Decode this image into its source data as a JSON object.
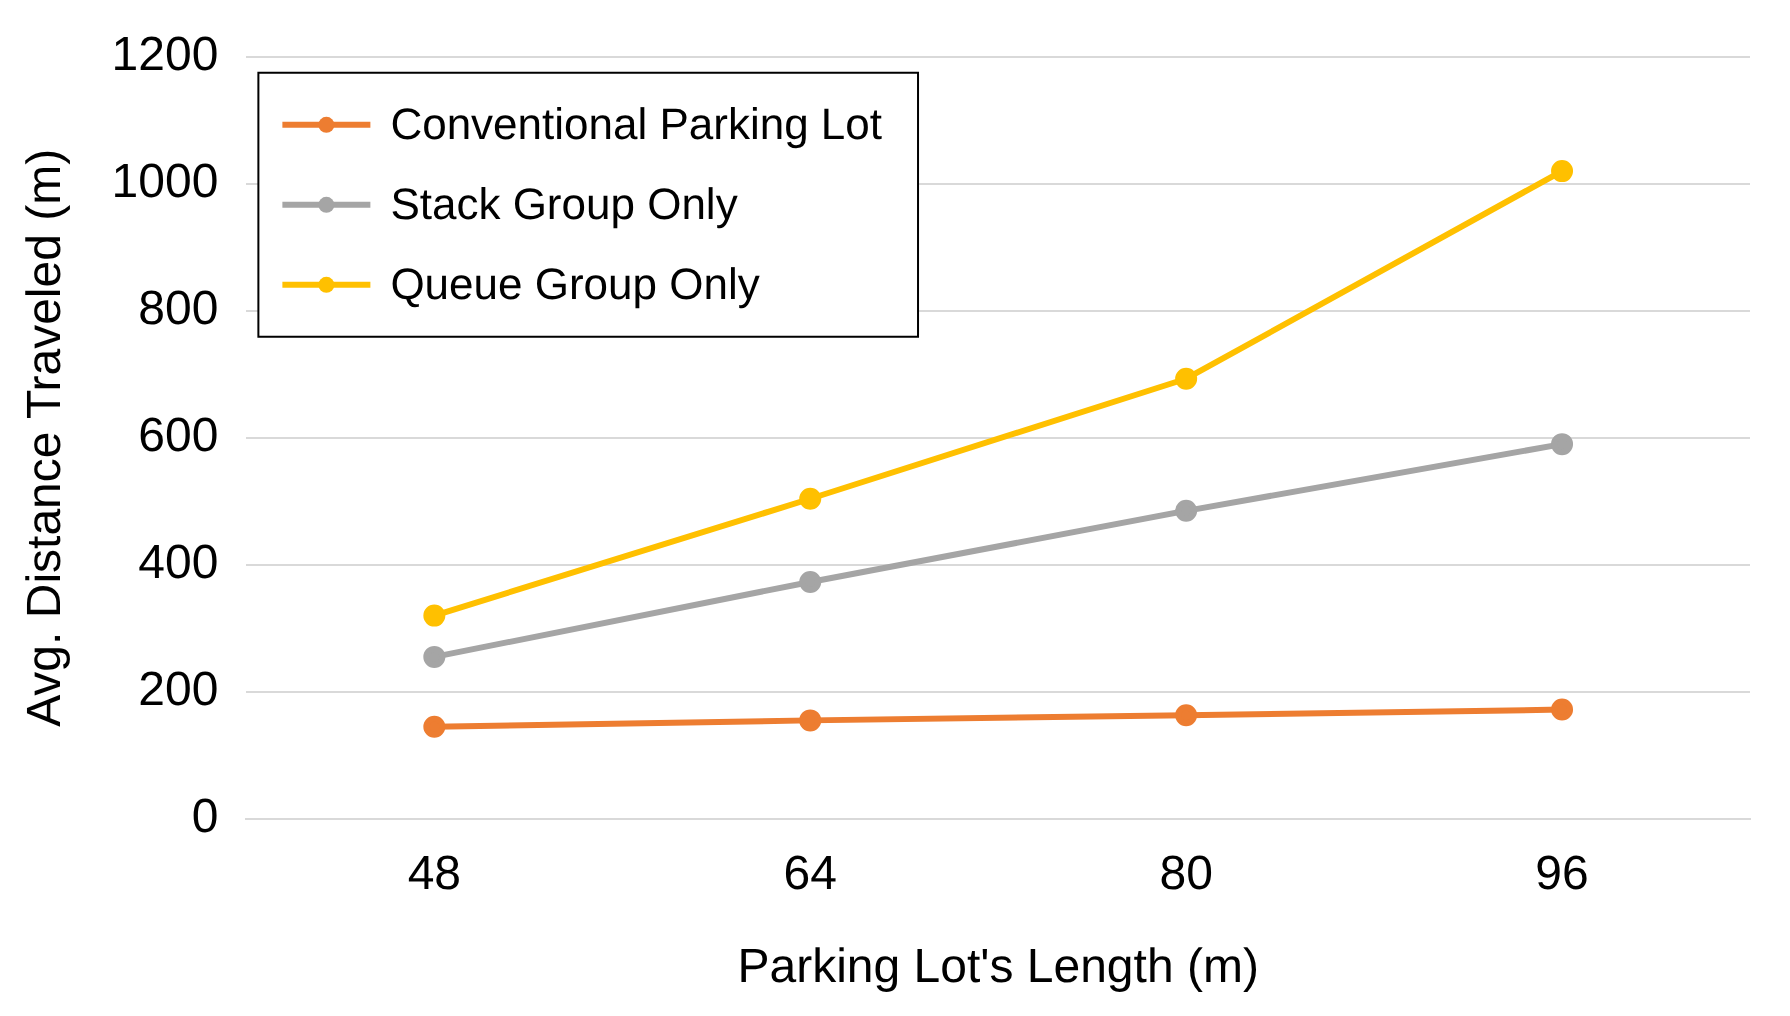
{
  "chart_data": {
    "type": "line",
    "xlabel": "Parking Lot's Length (m)",
    "ylabel": "Avg. Distance Traveled (m)",
    "categories": [
      "48",
      "64",
      "80",
      "96"
    ],
    "series": [
      {
        "name": "Conventional Parking Lot",
        "color": "#ed7d31",
        "values": [
          145,
          155,
          163,
          172
        ]
      },
      {
        "name": "Stack Group Only",
        "color": "#a5a5a5",
        "values": [
          255,
          373,
          485,
          590
        ]
      },
      {
        "name": "Queue Group Only",
        "color": "#ffc000",
        "values": [
          320,
          504,
          693,
          1020
        ]
      }
    ],
    "ylim": [
      0,
      1200
    ],
    "yticks": [
      0,
      200,
      400,
      600,
      800,
      1000,
      1200
    ],
    "grid": "y",
    "legend": "top left",
    "marker": "circle",
    "line_style": "solid"
  }
}
